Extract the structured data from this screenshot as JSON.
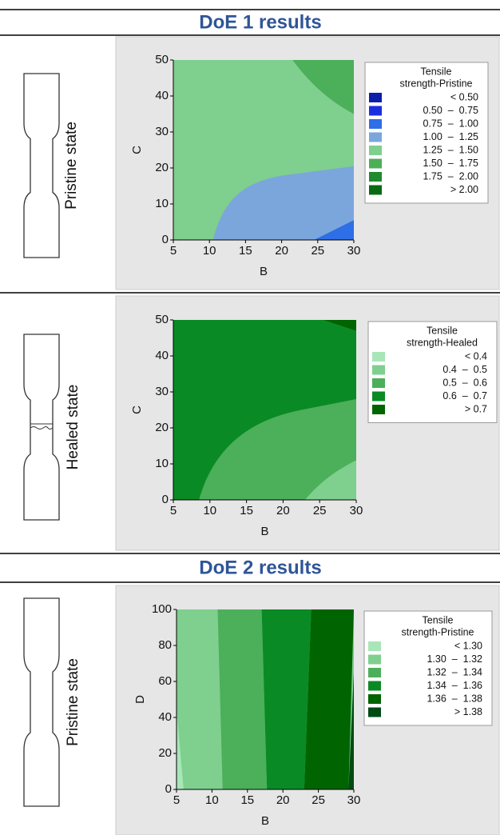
{
  "sections": [
    "DoE 1 results",
    "DoE 2 results"
  ],
  "chart_data": [
    {
      "type": "contour",
      "specimen_label": "Pristine state",
      "xlabel": "B",
      "ylabel": "C",
      "xlim": [
        5,
        30
      ],
      "xticks": [
        5,
        10,
        15,
        20,
        25,
        30
      ],
      "ylim": [
        0,
        50
      ],
      "yticks": [
        0,
        10,
        20,
        30,
        40,
        50
      ],
      "legend_title": [
        "Tensile",
        "strength-Pristine"
      ],
      "legend_rows": [
        "< 0.50",
        "0.50  –  0.75",
        "0.75  –  1.00",
        "1.00  –  1.25",
        "1.25  –  1.50",
        "1.50  –  1.75",
        "1.75  –  2.00",
        "> 2.00"
      ],
      "colors": [
        "#0b1fa8",
        "#1c2fe0",
        "#2e6ee6",
        "#7ba6dc",
        "#7fcf8f",
        "#4caf5a",
        "#1f8a2e",
        "#0a6a14"
      ]
    },
    {
      "type": "contour",
      "specimen_label": "Healed state",
      "xlabel": "B",
      "ylabel": "C",
      "xlim": [
        5,
        30
      ],
      "xticks": [
        5,
        10,
        15,
        20,
        25,
        30
      ],
      "ylim": [
        0,
        50
      ],
      "yticks": [
        0,
        10,
        20,
        30,
        40,
        50
      ],
      "legend_title": [
        "Tensile",
        "strength-Healed"
      ],
      "legend_rows": [
        "< 0.4",
        "0.4  –  0.5",
        "0.5  –  0.6",
        "0.6  –  0.7",
        "> 0.7"
      ],
      "colors": [
        "#a8e6b8",
        "#7fcf8f",
        "#4caf5a",
        "#0a8a24",
        "#006400"
      ]
    },
    {
      "type": "contour",
      "specimen_label": "Pristine state",
      "xlabel": "B",
      "ylabel": "D",
      "xlim": [
        5,
        30
      ],
      "xticks": [
        5,
        10,
        15,
        20,
        25,
        30
      ],
      "ylim": [
        0,
        100
      ],
      "yticks": [
        0,
        20,
        40,
        60,
        80,
        100
      ],
      "legend_title": [
        "Tensile",
        "strength-Pristine"
      ],
      "legend_rows": [
        "< 1.30",
        "1.30  –  1.32",
        "1.32  –  1.34",
        "1.34  –  1.36",
        "1.36  –  1.38",
        "> 1.38"
      ],
      "colors": [
        "#a8e6b8",
        "#7fcf8f",
        "#4caf5a",
        "#0a8a24",
        "#006400",
        "#004a14"
      ]
    }
  ]
}
